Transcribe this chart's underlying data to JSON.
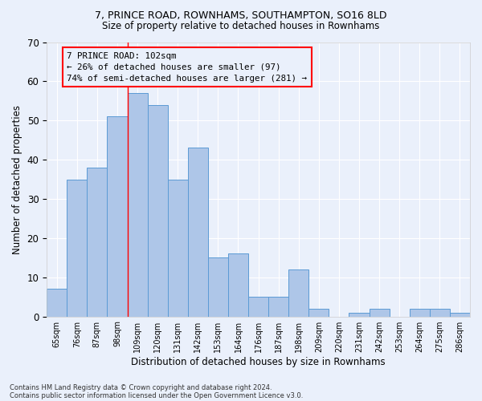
{
  "title1": "7, PRINCE ROAD, ROWNHAMS, SOUTHAMPTON, SO16 8LD",
  "title2": "Size of property relative to detached houses in Rownhams",
  "xlabel": "Distribution of detached houses by size in Rownhams",
  "ylabel": "Number of detached properties",
  "categories": [
    "65sqm",
    "76sqm",
    "87sqm",
    "98sqm",
    "109sqm",
    "120sqm",
    "131sqm",
    "142sqm",
    "153sqm",
    "164sqm",
    "176sqm",
    "187sqm",
    "198sqm",
    "209sqm",
    "220sqm",
    "231sqm",
    "242sqm",
    "253sqm",
    "264sqm",
    "275sqm",
    "286sqm"
  ],
  "heights": [
    7,
    35,
    38,
    51,
    57,
    54,
    35,
    43,
    15,
    16,
    5,
    5,
    12,
    2,
    0,
    1,
    2,
    0,
    2,
    2,
    1
  ],
  "bar_color": "#aec6e8",
  "bar_edge_color": "#5b9bd5",
  "annotation_line1": "7 PRINCE ROAD: 102sqm",
  "annotation_line2": "← 26% of detached houses are smaller (97)",
  "annotation_line3": "74% of semi-detached houses are larger (281) →",
  "vline_x": 3.5,
  "footnote1": "Contains HM Land Registry data © Crown copyright and database right 2024.",
  "footnote2": "Contains public sector information licensed under the Open Government Licence v3.0.",
  "ylim": [
    0,
    70
  ],
  "yticks": [
    0,
    10,
    20,
    30,
    40,
    50,
    60,
    70
  ],
  "background_color": "#eaf0fb",
  "grid_color": "#ffffff"
}
